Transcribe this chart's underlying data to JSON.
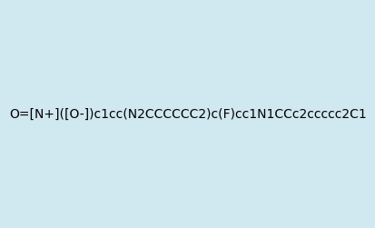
{
  "smiles": "O=[N+]([O-])c1cc(N2CCCCCC2)c(F)cc1N1CCc2ccccc2C1",
  "title": "",
  "bg_color": "#d0e8f0",
  "img_size": [
    300,
    300
  ]
}
